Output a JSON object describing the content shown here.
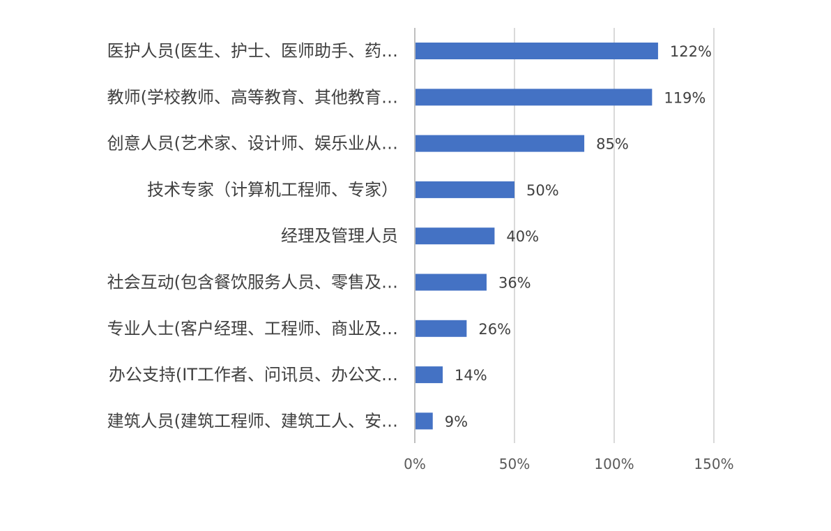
{
  "chart_data": {
    "type": "bar",
    "orientation": "horizontal",
    "categories": [
      "医护人员(医生、护士、医师助手、药…",
      "教师(学校教师、高等教育、其他教育…",
      "创意人员(艺术家、设计师、娱乐业从…",
      "技术专家（计算机工程师、专家）",
      "经理及管理人员",
      "社会互动(包含餐饮服务人员、零售及…",
      "专业人士(客户经理、工程师、商业及…",
      "办公支持(IT工作者、问讯员、办公文…",
      "建筑人员(建筑工程师、建筑工人、安…"
    ],
    "values": [
      122,
      119,
      85,
      50,
      40,
      36,
      26,
      14,
      9
    ],
    "value_labels": [
      "122%",
      "119%",
      "85%",
      "50%",
      "40%",
      "36%",
      "26%",
      "14%",
      "9%"
    ],
    "x_ticks": [
      0,
      50,
      100,
      150
    ],
    "x_tick_labels": [
      "0%",
      "50%",
      "100%",
      "150%"
    ],
    "xlim": [
      0,
      150
    ],
    "grid": "vertical",
    "legend": "none",
    "title": "",
    "xlabel": "",
    "ylabel": "",
    "colors": {
      "bar": "#4472C4",
      "grid": "#D9D9D9",
      "axis": "#BFBFBF",
      "category_text": "#404040",
      "tick_text": "#595959",
      "value_text": "#404040"
    }
  }
}
